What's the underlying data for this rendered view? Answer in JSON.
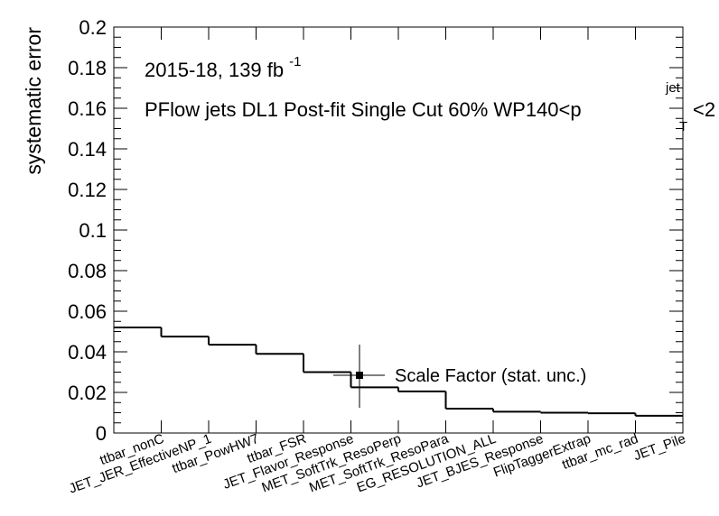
{
  "chart_data": {
    "type": "step",
    "ylabel": "systematic error",
    "xlabel": "",
    "ylim": [
      0,
      0.2
    ],
    "yticks": [
      "0",
      "0.02",
      "0.04",
      "0.06",
      "0.08",
      "0.1",
      "0.12",
      "0.14",
      "0.16",
      "0.18",
      "0.2"
    ],
    "ytick_values": [
      0,
      0.02,
      0.04,
      0.06,
      0.08,
      0.1,
      0.12,
      0.14,
      0.16,
      0.18,
      0.2
    ],
    "categories": [
      "ttbar_nonC",
      "JET_JER_EffectiveNP_1",
      "ttbar_PowHW7",
      "ttbar_FSR",
      "JET_Flavor_Response",
      "MET_SoftTrk_ResoPerp",
      "MET_SoftTrk_ResoPara",
      "EG_RESOLUTION_ALL",
      "JET_BJES_Response",
      "FlipTaggerExtrap",
      "ttbar_mc_rad",
      "JET_Pile"
    ],
    "values": [
      0.052,
      0.0475,
      0.0435,
      0.039,
      0.03,
      0.0225,
      0.0205,
      0.012,
      0.0105,
      0.01,
      0.0097,
      0.0085
    ],
    "annotations": {
      "line1": "2015-18, 139 fb",
      "line1_sup": "-1",
      "line2": "PFlow jets DL1 Post-fit Single Cut 60% WP140<p",
      "line2_sup": "jet",
      "line2_sub": "T",
      "line2_tail": "<2"
    },
    "legend": {
      "label": "Scale Factor (stat. unc.)"
    }
  }
}
